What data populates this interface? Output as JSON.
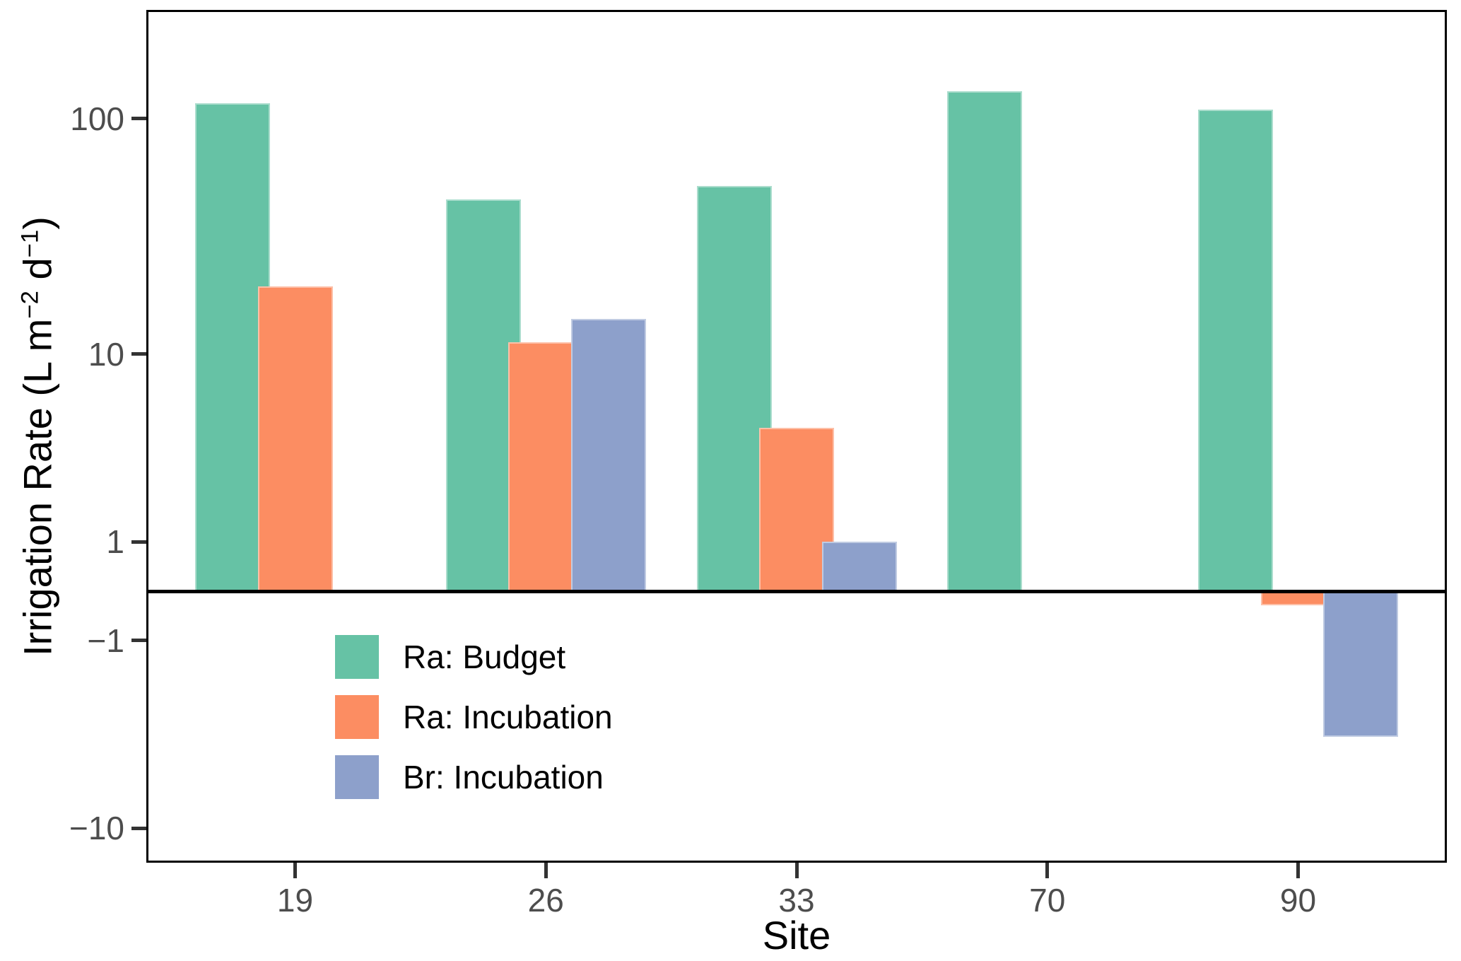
{
  "figure": {
    "background": "#ffffff",
    "panel_border_color": "#000000",
    "zero_line_color": "#000000",
    "tick_label_color": "#4d4d4d"
  },
  "chart_data": {
    "type": "bar",
    "title": "",
    "xlabel": "Site",
    "ylabel": "Irrigation Rate (L m⁻² d⁻¹)",
    "y_scale": "pseudo-log (asinh, base 10)",
    "grid": false,
    "baseline": 0,
    "legend_position": "inside bottom-left",
    "categories": [
      "19",
      "26",
      "33",
      "70",
      "90"
    ],
    "x_tick_labels": [
      "19",
      "26",
      "33",
      "70",
      "90"
    ],
    "y_ticks": [
      100,
      10,
      1,
      -1,
      -10
    ],
    "y_tick_labels": [
      "100",
      "10",
      "1",
      "−1",
      "−10"
    ],
    "series": [
      {
        "name": "Ra: Budget",
        "color": "#66C2A5",
        "values": [
          116,
          45.5,
          52,
          131,
          109
        ]
      },
      {
        "name": "Ra: Incubation",
        "color": "#FC8D62",
        "values": [
          19.4,
          11.2,
          4.7,
          null,
          -0.28
        ]
      },
      {
        "name": "Br: Incubation",
        "color": "#8DA0CB",
        "values": [
          null,
          14.1,
          1.0,
          null,
          -3.9
        ]
      }
    ]
  },
  "axes": {
    "x_title": "Site",
    "y_title": "Irrigation Rate (L m⁻² d⁻¹)",
    "y_title_parts": {
      "pre": "Irrigation Rate (L m",
      "sup1": "−2",
      "mid": " d",
      "sup2": "−1",
      "post": ")"
    }
  },
  "legend": {
    "items": [
      {
        "label": "Ra: Budget",
        "color": "#66C2A5"
      },
      {
        "label": "Ra: Incubation",
        "color": "#FC8D62"
      },
      {
        "label": "Br: Incubation",
        "color": "#8DA0CB"
      }
    ]
  }
}
